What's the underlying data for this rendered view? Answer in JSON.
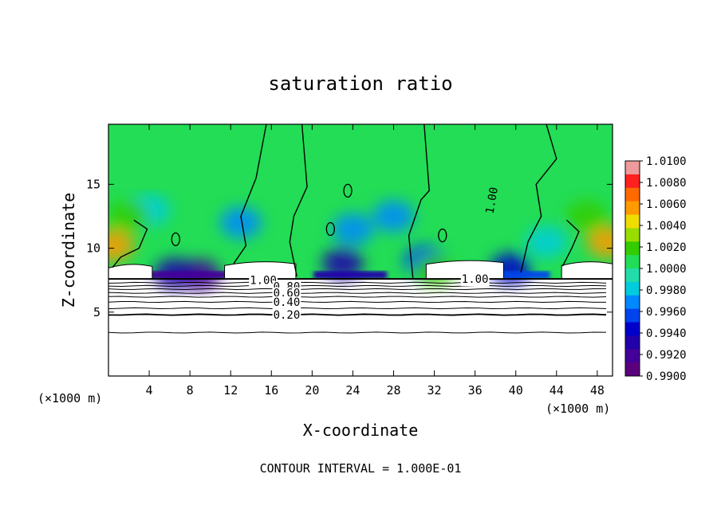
{
  "chart_data": {
    "type": "heatmap",
    "title": "saturation ratio",
    "xlabel": "X-coordinate",
    "ylabel": "Z-coordinate",
    "x_unit": "(×1000 m)",
    "x_unit_right": "(×1000 m)",
    "footer": "CONTOUR INTERVAL = 1.000E-01",
    "xlim": [
      0,
      49.5
    ],
    "ylim": [
      0,
      19.7
    ],
    "x_ticks": [
      4,
      8,
      12,
      16,
      20,
      24,
      28,
      32,
      36,
      40,
      44,
      48
    ],
    "y_ticks": [
      5,
      10,
      15
    ],
    "colorbar": {
      "min": 0.99,
      "max": 1.01,
      "labels": [
        "1.0100",
        "1.0080",
        "1.0060",
        "1.0040",
        "1.0020",
        "1.0000",
        "0.9980",
        "0.9960",
        "0.9940",
        "0.9920",
        "0.9900"
      ],
      "label_values": [
        1.01,
        1.008,
        1.006,
        1.004,
        1.002,
        1.0,
        0.998,
        0.996,
        0.994,
        0.992,
        0.99
      ],
      "colors": [
        "#ee9a9a",
        "#ff2020",
        "#ff6a00",
        "#ff9a00",
        "#eedd00",
        "#99dd00",
        "#33cc00",
        "#22dd55",
        "#22ddaa",
        "#00ccdd",
        "#0088ff",
        "#0044ee",
        "#0000cc",
        "#2200aa",
        "#440099",
        "#5a007d"
      ]
    },
    "contour_labels": [
      {
        "text": "1.00",
        "x": 38.0,
        "y": 14.0
      },
      {
        "text": "1.00",
        "x": 15.2,
        "y": 7.5
      },
      {
        "text": "1.00",
        "x": 36.0,
        "y": 7.6
      },
      {
        "text": "0.80",
        "x": 17.5,
        "y": 7.0
      },
      {
        "text": "0.60",
        "x": 17.5,
        "y": 6.5
      },
      {
        "text": "0.40",
        "x": 17.5,
        "y": 5.8
      },
      {
        "text": "0.20",
        "x": 17.5,
        "y": 4.8
      }
    ],
    "contour_levels": [
      {
        "value": 0.1,
        "z": 3.4
      },
      {
        "value": 0.2,
        "z": 4.8
      },
      {
        "value": 0.3,
        "z": 5.3
      },
      {
        "value": 0.4,
        "z": 5.8
      },
      {
        "value": 0.5,
        "z": 6.2
      },
      {
        "value": 0.6,
        "z": 6.5
      },
      {
        "value": 0.7,
        "z": 6.8
      },
      {
        "value": 0.8,
        "z": 7.05
      },
      {
        "value": 0.9,
        "z": 7.3
      }
    ],
    "fields": {
      "base_saturation": 1.0002,
      "cloud_base_z": 7.6,
      "cloud_top_z": 19.7,
      "dry_blobs": [
        {
          "x": 9.0,
          "z": 7.9,
          "value": 0.9918
        },
        {
          "x": 6.5,
          "z": 8.0,
          "value": 0.9935
        },
        {
          "x": 23.0,
          "z": 8.8,
          "value": 0.9935
        },
        {
          "x": 31.0,
          "z": 9.0,
          "value": 0.9955
        },
        {
          "x": 39.5,
          "z": 8.4,
          "value": 0.995
        },
        {
          "x": 13.0,
          "z": 12.0,
          "value": 0.9972
        },
        {
          "x": 24.0,
          "z": 11.5,
          "value": 0.997
        },
        {
          "x": 28.0,
          "z": 12.5,
          "value": 0.9974
        },
        {
          "x": 4.0,
          "z": 13.0,
          "value": 0.9978
        },
        {
          "x": 43.0,
          "z": 10.5,
          "value": 0.9976
        }
      ],
      "moist_blobs": [
        {
          "x": 0.5,
          "z": 10.2,
          "value": 1.0055
        },
        {
          "x": 49.0,
          "z": 10.5,
          "value": 1.006
        },
        {
          "x": 47.0,
          "z": 12.5,
          "value": 1.0025
        },
        {
          "x": 2.0,
          "z": 12.5,
          "value": 1.0022
        },
        {
          "x": 32.0,
          "z": 8.3,
          "value": 1.0025
        }
      ],
      "clear_patches": [
        {
          "x0": 0.0,
          "x1": 4.3,
          "z0": 7.6,
          "z1": 8.7
        },
        {
          "x0": 11.4,
          "x1": 18.4,
          "z0": 7.6,
          "z1": 8.9
        },
        {
          "x0": 31.2,
          "x1": 38.8,
          "z0": 7.6,
          "z1": 9.0
        },
        {
          "x0": 44.5,
          "x1": 49.5,
          "z0": 7.6,
          "z1": 8.9
        }
      ]
    }
  }
}
